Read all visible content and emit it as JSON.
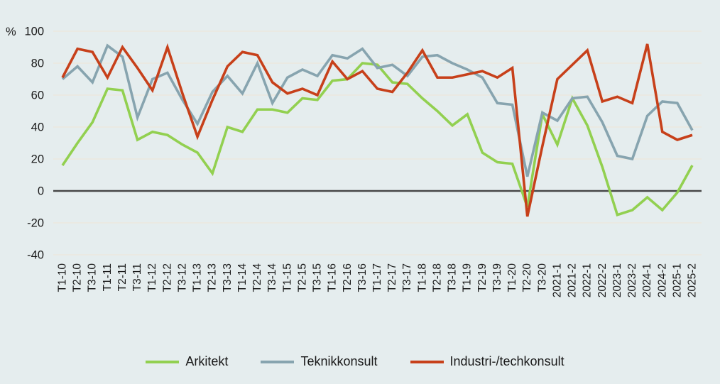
{
  "chart_data": {
    "type": "line",
    "title": "",
    "unit_label": "%",
    "ylim": [
      -40,
      100
    ],
    "y_ticks": [
      100,
      80,
      60,
      40,
      20,
      0,
      -20,
      -40
    ],
    "grid": true,
    "legend_position": "bottom",
    "categories": [
      "T1-10",
      "T2-10",
      "T3-10",
      "T1-11",
      "T2-11",
      "T3-11",
      "T1-12",
      "T2-12",
      "T3-12",
      "T1-13",
      "T2-13",
      "T3-13",
      "T1-14",
      "T2-14",
      "T3-14",
      "T1-15",
      "T2-15",
      "T3-15",
      "T1-16",
      "T2-16",
      "T3-16",
      "T1-17",
      "T2-17",
      "T3-17",
      "T1-18",
      "T2-18",
      "T3-18",
      "T1-19",
      "T2-19",
      "T3-19",
      "T1-20",
      "T2-20",
      "T3-20",
      "2021-1",
      "2021-2",
      "2022-1",
      "2022-2",
      "2023-1",
      "2023-2",
      "2024-1",
      "2024-2",
      "2025-1",
      "2025-2"
    ],
    "series": [
      {
        "name": "Arkitekt",
        "color": "#92d050",
        "values": [
          16,
          30,
          43,
          64,
          63,
          32,
          37,
          35,
          29,
          24,
          11,
          40,
          37,
          51,
          51,
          49,
          58,
          57,
          69,
          70,
          80,
          79,
          68,
          67,
          58,
          50,
          41,
          48,
          24,
          18,
          17,
          -10,
          48,
          29,
          58,
          41,
          15,
          -15,
          -12,
          -4,
          -12,
          -1,
          16
        ]
      },
      {
        "name": "Teknikkonsult",
        "color": "#87a4af",
        "values": [
          70,
          78,
          68,
          91,
          84,
          46,
          70,
          74,
          57,
          42,
          62,
          72,
          61,
          80,
          55,
          71,
          76,
          72,
          85,
          83,
          89,
          77,
          79,
          72,
          84,
          85,
          80,
          76,
          71,
          55,
          54,
          9,
          49,
          44,
          58,
          59,
          43,
          22,
          20,
          47,
          56,
          55,
          38
        ]
      },
      {
        "name": "Industri-/techkonsult",
        "color": "#c7401a",
        "values": [
          71,
          89,
          87,
          71,
          90,
          77,
          63,
          90,
          61,
          34,
          57,
          78,
          87,
          85,
          68,
          61,
          64,
          60,
          81,
          70,
          75,
          64,
          62,
          74,
          88,
          71,
          71,
          73,
          75,
          71,
          77,
          -16,
          28,
          70,
          79,
          88,
          56,
          59,
          55,
          92,
          37,
          32,
          35
        ]
      }
    ],
    "colors": {
      "background": "#e5edee",
      "gridline": "#ece8dd",
      "zero_line": "#474747",
      "text": "#1a1a1a"
    }
  }
}
